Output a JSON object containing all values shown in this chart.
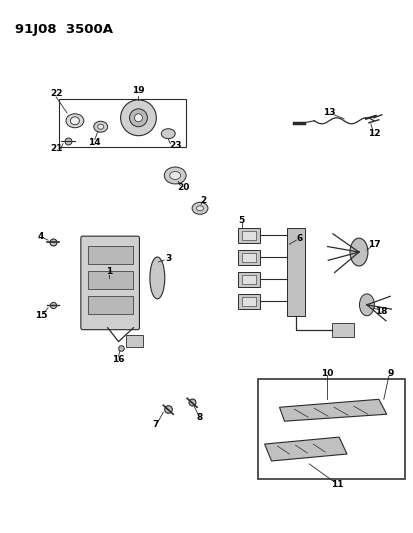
{
  "title": "91J08  3500A",
  "bg_color": "#ffffff",
  "line_color": "#2a2a2a",
  "title_fontsize": 9.5,
  "label_fontsize": 6.5,
  "fig_width": 4.14,
  "fig_height": 5.33,
  "dpi": 100
}
